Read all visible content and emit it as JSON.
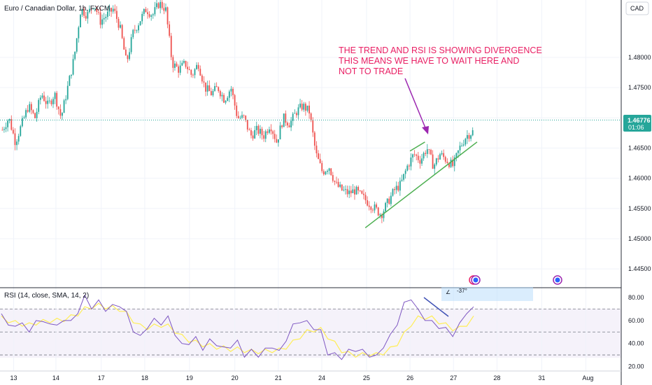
{
  "header": {
    "symbol_title": "Euro / Canadian Dollar, 1h, FXCM",
    "currency": "CAD"
  },
  "price_panel": {
    "current_price": "1.46776",
    "countdown": "01:06",
    "axis_ticks": [
      "1.48000",
      "1.47500",
      "1.47000",
      "1.46500",
      "1.46000",
      "1.45500",
      "1.45000",
      "1.44500"
    ],
    "annotation_lines": [
      "THE TREND AND RSI IS SHOWING DIVERGENCE",
      "THIS MEANS WE HAVE TO WAIT HERE AND",
      "NOT TO TRADE"
    ]
  },
  "rsi_panel": {
    "title": "RSI (14, close, SMA, 14, 2)",
    "axis_ticks": [
      "80.00",
      "60.00",
      "40.00",
      "20.00"
    ],
    "angle_label": "-37°"
  },
  "x_axis": {
    "labels": [
      "13",
      "14",
      "17",
      "18",
      "19",
      "20",
      "21",
      "24",
      "25",
      "26",
      "27",
      "28",
      "31",
      "Aug"
    ]
  },
  "colors": {
    "up": "#26a69a",
    "down": "#ef5350",
    "trendline": "#4caf50",
    "arrow": "#9c27b0",
    "annotation": "#e91e63",
    "rsi_line": "#7e57c2",
    "rsi_ma": "#ffee58",
    "rsi_band": "#ede7f6",
    "rsi_divergence": "#3f51b5",
    "price_badge": "#26a69a"
  },
  "chart_data": {
    "type": "candlestick",
    "ylim": [
      1.442,
      1.4895
    ],
    "rsi_ylim": [
      16,
      88
    ],
    "rsi_levels": [
      70,
      50,
      30
    ],
    "x_labels": [
      "13",
      "14",
      "17",
      "18",
      "19",
      "20",
      "21",
      "24",
      "25",
      "26",
      "27",
      "28",
      "31",
      "Aug"
    ],
    "price_path": [
      1.468,
      1.47,
      1.466,
      1.469,
      1.472,
      1.47,
      1.474,
      1.472,
      1.474,
      1.47,
      1.475,
      1.48,
      1.488,
      1.487,
      1.489,
      1.486,
      1.487,
      1.488,
      1.485,
      1.479,
      1.484,
      1.486,
      1.488,
      1.487,
      1.489,
      1.488,
      1.479,
      1.478,
      1.479,
      1.477,
      1.479,
      1.475,
      1.474,
      1.475,
      1.473,
      1.475,
      1.47,
      1.47,
      1.467,
      1.468,
      1.467,
      1.469,
      1.466,
      1.47,
      1.469,
      1.471,
      1.472,
      1.471,
      1.464,
      1.461,
      1.462,
      1.459,
      1.458,
      1.4575,
      1.458,
      1.457,
      1.456,
      1.455,
      1.454,
      1.456,
      1.458,
      1.459,
      1.462,
      1.464,
      1.463,
      1.465,
      1.462,
      1.464,
      1.463,
      1.462,
      1.465,
      1.467,
      1.4677
    ],
    "rsi_path": [
      64,
      58,
      53,
      60,
      48,
      62,
      57,
      59,
      54,
      62,
      58,
      68,
      80,
      72,
      76,
      70,
      72,
      74,
      66,
      52,
      45,
      55,
      60,
      58,
      62,
      49,
      38,
      41,
      44,
      36,
      42,
      40,
      35,
      38,
      41,
      30,
      33,
      30,
      34,
      38,
      32,
      44,
      55,
      60,
      58,
      54,
      50,
      32,
      30,
      28,
      33,
      35,
      33,
      30,
      28,
      38,
      46,
      58,
      74,
      80,
      68,
      62,
      58,
      55,
      52,
      48,
      56,
      68,
      70
    ],
    "rsi_ma_path": [
      62,
      60,
      58,
      57,
      56,
      58,
      59,
      60,
      60,
      61,
      63,
      66,
      70,
      72,
      73,
      72,
      71,
      70,
      66,
      60,
      55,
      54,
      55,
      56,
      55,
      51,
      46,
      43,
      41,
      39,
      38,
      37,
      36,
      35,
      35,
      34,
      33,
      33,
      33,
      34,
      34,
      37,
      41,
      46,
      50,
      52,
      52,
      46,
      40,
      34,
      31,
      30,
      30,
      31,
      30,
      32,
      35,
      40,
      48,
      57,
      62,
      63,
      62,
      59,
      56,
      53,
      53,
      57,
      62
    ],
    "trendlines": {
      "upper_channel": [
        [
          0.66,
          1.4645
        ],
        [
          0.684,
          1.466
        ]
      ],
      "lower_support": [
        [
          0.588,
          1.4518
        ],
        [
          0.768,
          1.466
        ]
      ]
    }
  }
}
